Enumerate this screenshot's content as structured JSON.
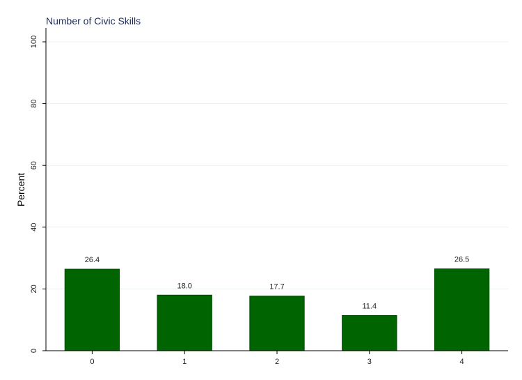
{
  "chart_data": {
    "type": "bar",
    "title": "Number of Civic Skills",
    "xlabel": "",
    "ylabel": "Percent",
    "categories": [
      "0",
      "1",
      "2",
      "3",
      "4"
    ],
    "values": [
      26.4,
      18.0,
      17.7,
      11.4,
      26.5
    ],
    "value_labels": [
      "26.4",
      "18.0",
      "17.7",
      "11.4",
      "26.5"
    ],
    "ylim": [
      0,
      100
    ],
    "yticks": [
      "0",
      "20",
      "40",
      "60",
      "80",
      "100"
    ],
    "grid": true,
    "bar_color": "#006400",
    "grid_color": "#eaf0f3"
  }
}
